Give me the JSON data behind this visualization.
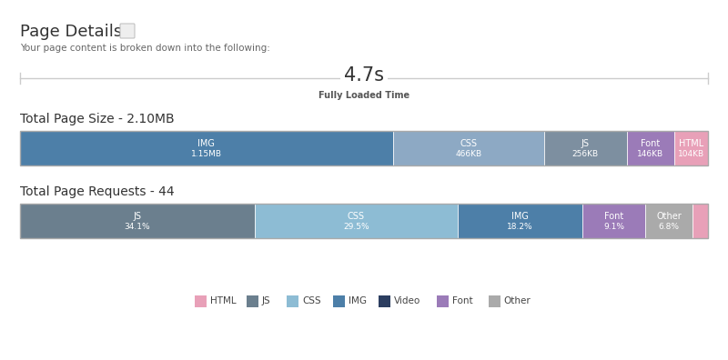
{
  "title": "Page Details",
  "subtitle": "Your page content is broken down into the following:",
  "loaded_time": "4.7s",
  "loaded_label": "Fully Loaded Time",
  "size_title": "Total Page Size - 2.10MB",
  "requests_title": "Total Page Requests - 44",
  "size_bars": [
    {
      "label": "IMG",
      "sublabel": "1.15MB",
      "value": 1150,
      "color": "#4d7fa8"
    },
    {
      "label": "CSS",
      "sublabel": "466KB",
      "value": 466,
      "color": "#8da9c4"
    },
    {
      "label": "JS",
      "sublabel": "256KB",
      "value": 256,
      "color": "#7d8fa0"
    },
    {
      "label": "Font",
      "sublabel": "146KB",
      "value": 146,
      "color": "#9b7bb8"
    },
    {
      "label": "HTML",
      "sublabel": "104KB",
      "value": 104,
      "color": "#e8a0b8"
    }
  ],
  "req_bars": [
    {
      "label": "JS",
      "sublabel": "34.1%",
      "value": 34.1,
      "color": "#6b7f8e"
    },
    {
      "label": "CSS",
      "sublabel": "29.5%",
      "value": 29.5,
      "color": "#8dbcd4"
    },
    {
      "label": "IMG",
      "sublabel": "18.2%",
      "value": 18.2,
      "color": "#4d7fa8"
    },
    {
      "label": "Font",
      "sublabel": "9.1%",
      "value": 9.1,
      "color": "#9b7bb8"
    },
    {
      "label": "Other",
      "sublabel": "6.8%",
      "value": 6.8,
      "color": "#aaaaaa"
    },
    {
      "label": "HTML",
      "sublabel": "",
      "value": 2.3,
      "color": "#e8a0b8"
    }
  ],
  "legend_items": [
    {
      "label": "HTML",
      "color": "#e8a0b8"
    },
    {
      "label": "JS",
      "color": "#6b7f8e"
    },
    {
      "label": "CSS",
      "color": "#8dbcd4"
    },
    {
      "label": "IMG",
      "color": "#4d7fa8"
    },
    {
      "label": "Video",
      "color": "#2c3e60"
    },
    {
      "label": "Font",
      "color": "#9b7bb8"
    },
    {
      "label": "Other",
      "color": "#aaaaaa"
    }
  ],
  "bg_color": "#ffffff"
}
